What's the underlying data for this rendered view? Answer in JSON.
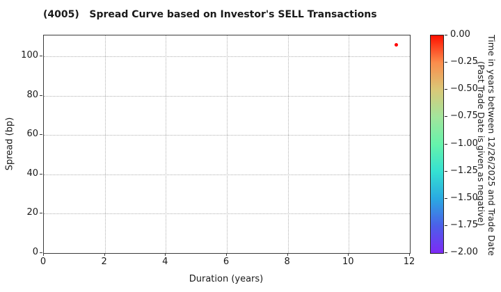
{
  "title": "(4005)   Spread Curve based on Investor's SELL Transactions",
  "axes": {
    "xlabel": "Duration (years)",
    "ylabel": "Spread (bp)",
    "x_tick_labels": [
      "0",
      "2",
      "4",
      "6",
      "8",
      "10",
      "12"
    ],
    "y_tick_labels": [
      "0",
      "20",
      "40",
      "60",
      "80",
      "100"
    ]
  },
  "colorbar": {
    "tick_labels": [
      "0.00",
      "−0.25",
      "−0.50",
      "−0.75",
      "−1.00",
      "−1.25",
      "−1.50",
      "−1.75",
      "−2.00"
    ],
    "label_line1": "Time in years between 12/26/2025 and Trade Date",
    "label_line2": "(Past Trade Date is given as negative)",
    "gradient_colors": [
      "#ff1000",
      "#fb8d4c",
      "#d9c878",
      "#a2e59c",
      "#66f3ab",
      "#35e1d2",
      "#2aa9e1",
      "#4c5fe9",
      "#7d2af5"
    ]
  },
  "chart_data": {
    "type": "scatter",
    "title": "(4005)   Spread Curve based on Investor's SELL Transactions",
    "xlabel": "Duration (years)",
    "ylabel": "Spread (bp)",
    "xlim": [
      0,
      12
    ],
    "ylim": [
      0,
      110.6
    ],
    "x_ticks": [
      0,
      2,
      4,
      6,
      8,
      10,
      12
    ],
    "y_ticks": [
      0,
      20,
      40,
      60,
      80,
      100
    ],
    "grid": "dotted",
    "legend": "none",
    "points": [
      {
        "x": 11.55,
        "y": 106,
        "color": "#ff0000",
        "colorbar_value": 0.0
      }
    ],
    "colorbar": {
      "colormap": "rainbow",
      "vmin": -2.0,
      "vmax": 0.0,
      "ticks": [
        0.0,
        -0.25,
        -0.5,
        -0.75,
        -1.0,
        -1.25,
        -1.5,
        -1.75,
        -2.0
      ],
      "label": "Time in years between 12/26/2025 and Trade Date (Past Trade Date is given as negative)",
      "position": "right"
    }
  }
}
